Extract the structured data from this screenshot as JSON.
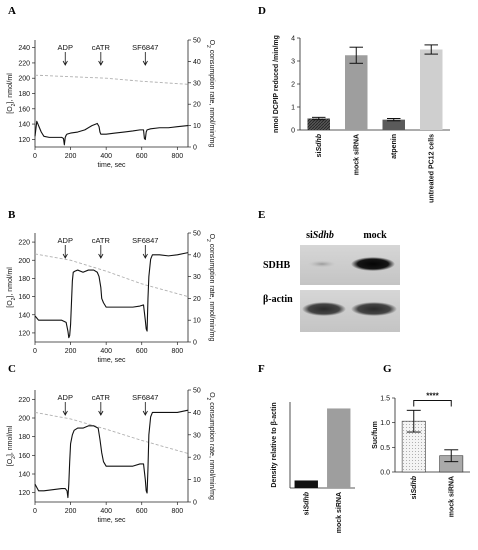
{
  "panels": {
    "A": "A",
    "B": "B",
    "C": "C",
    "D": "D",
    "E": "E",
    "F": "F",
    "G": "G"
  },
  "chart_data": [
    {
      "id": "A",
      "type": "line",
      "xlabel": "time, sec",
      "ylabel": "[O2], nmol/ml",
      "y2label": "O2 consumption rate, nmol/min/mg",
      "xlim": [
        0,
        860
      ],
      "ylim": [
        110,
        250
      ],
      "y2lim": [
        0,
        50
      ],
      "xticks": [
        0,
        200,
        400,
        600,
        800
      ],
      "yticks": [
        120,
        140,
        160,
        180,
        200,
        220,
        240
      ],
      "y2ticks": [
        0,
        10,
        20,
        30,
        40,
        50
      ],
      "annotations": [
        {
          "label": "ADP",
          "x": 170
        },
        {
          "label": "cATR",
          "x": 370
        },
        {
          "label": "SF6847",
          "x": 620
        }
      ],
      "series": [
        {
          "role": "oxygen",
          "axis": "left",
          "style": "dashed",
          "x": [
            0,
            200,
            400,
            600,
            860
          ],
          "y": [
            204,
            202,
            200,
            196,
            192
          ]
        },
        {
          "role": "rate",
          "axis": "right",
          "style": "solid",
          "x": [
            0,
            10,
            20,
            35,
            50,
            80,
            120,
            150,
            160,
            165,
            170,
            175,
            180,
            200,
            240,
            280,
            320,
            350,
            360,
            365,
            370,
            380,
            400,
            450,
            500,
            550,
            590,
            610,
            615,
            620,
            625,
            630,
            650,
            700,
            750,
            800,
            860
          ],
          "y": [
            5,
            12,
            10,
            7,
            5,
            4.5,
            4.5,
            4.5,
            4,
            1,
            4.5,
            5.5,
            6,
            6.5,
            7,
            8,
            10,
            11,
            9.5,
            7,
            6,
            6,
            6,
            6.5,
            7,
            7.5,
            8,
            8,
            4,
            3.5,
            7,
            8,
            8.5,
            9,
            9,
            9.5,
            10
          ]
        }
      ]
    },
    {
      "id": "B",
      "type": "line",
      "xlabel": "time, sec",
      "ylabel": "[O2], nmol/ml",
      "y2label": "O2 consumption rate, nmol/min/mg",
      "xlim": [
        0,
        860
      ],
      "ylim": [
        110,
        230
      ],
      "y2lim": [
        0,
        50
      ],
      "xticks": [
        0,
        200,
        400,
        600,
        800
      ],
      "yticks": [
        120,
        140,
        160,
        180,
        200,
        220
      ],
      "y2ticks": [
        0,
        10,
        20,
        30,
        40,
        50
      ],
      "annotations": [
        {
          "label": "ADP",
          "x": 170
        },
        {
          "label": "cATR",
          "x": 370
        },
        {
          "label": "SF6847",
          "x": 620
        }
      ],
      "series": [
        {
          "role": "oxygen",
          "axis": "left",
          "style": "dashed",
          "x": [
            0,
            200,
            400,
            600,
            860
          ],
          "y": [
            207,
            200,
            188,
            174,
            160
          ]
        },
        {
          "role": "rate",
          "axis": "right",
          "style": "solid",
          "x": [
            0,
            20,
            50,
            100,
            150,
            175,
            185,
            190,
            195,
            200,
            205,
            210,
            215,
            225,
            240,
            270,
            300,
            330,
            350,
            360,
            370,
            375,
            385,
            400,
            450,
            500,
            550,
            590,
            610,
            620,
            625,
            630,
            635,
            640,
            650,
            660,
            680,
            700,
            750,
            800,
            860
          ],
          "y": [
            12,
            10,
            10,
            10,
            10,
            9,
            5,
            2,
            3,
            8,
            18,
            28,
            32,
            32.5,
            33,
            32,
            33,
            33,
            32,
            30,
            25,
            20,
            18,
            16,
            16,
            16,
            16,
            16.5,
            17,
            10,
            6,
            5,
            20,
            30,
            38,
            40,
            40,
            40,
            39.5,
            40,
            41
          ]
        }
      ]
    },
    {
      "id": "C",
      "type": "line",
      "xlabel": "time, sec",
      "ylabel": "[O2], nmol/ml",
      "y2label": "O2 consumption rate, nmol/min/mg",
      "xlim": [
        0,
        860
      ],
      "ylim": [
        110,
        230
      ],
      "y2lim": [
        0,
        50
      ],
      "xticks": [
        0,
        200,
        400,
        600,
        800
      ],
      "yticks": [
        120,
        140,
        160,
        180,
        200,
        220
      ],
      "y2ticks": [
        0,
        10,
        20,
        30,
        40,
        50
      ],
      "annotations": [
        {
          "label": "ADP",
          "x": 170
        },
        {
          "label": "cATR",
          "x": 370
        },
        {
          "label": "SF6847",
          "x": 620
        }
      ],
      "series": [
        {
          "role": "oxygen",
          "axis": "left",
          "style": "dashed",
          "x": [
            0,
            200,
            400,
            600,
            860
          ],
          "y": [
            206,
            199,
            188,
            176,
            162
          ]
        },
        {
          "role": "rate",
          "axis": "right",
          "style": "solid",
          "x": [
            0,
            20,
            50,
            100,
            150,
            170,
            180,
            185,
            190,
            195,
            200,
            210,
            220,
            240,
            270,
            300,
            330,
            355,
            365,
            375,
            385,
            400,
            450,
            500,
            550,
            590,
            610,
            620,
            625,
            630,
            635,
            640,
            650,
            660,
            680,
            700,
            750,
            800,
            860
          ],
          "y": [
            8,
            5,
            5,
            5.5,
            6,
            6,
            5,
            2,
            8,
            18,
            26,
            30,
            32,
            33,
            33,
            34,
            34,
            33,
            28,
            22,
            18,
            16,
            16,
            16,
            16,
            17,
            17,
            10,
            5,
            4,
            15,
            30,
            38,
            40,
            40,
            40,
            40,
            40,
            41
          ]
        }
      ]
    },
    {
      "id": "D",
      "type": "bar",
      "ylabel": "nmol DCPIP reduced /min/mg",
      "ylim": [
        0,
        4
      ],
      "yticks": [
        0,
        1,
        2,
        3,
        4
      ],
      "categories": [
        "siSdhb",
        "mock siRNA",
        "atpenin",
        "untreated PC12 cells"
      ],
      "values": [
        0.5,
        3.25,
        0.45,
        3.5
      ],
      "errors": [
        0.05,
        0.35,
        0.05,
        0.2
      ],
      "colors": [
        "#444444",
        "#9e9e9e",
        "#5a5a5a",
        "#cfcfcf"
      ]
    },
    {
      "id": "F",
      "type": "bar",
      "ylabel": "Density relative to β-actin",
      "ylim": [
        0,
        80
      ],
      "categories": [
        "siSdhb",
        "mock siRNA"
      ],
      "values": [
        7,
        74
      ],
      "colors": [
        "#111111",
        "#9e9e9e"
      ]
    },
    {
      "id": "G",
      "type": "bar",
      "ylabel": "Suc/fum",
      "ylim": [
        0,
        1.5
      ],
      "yticks": [
        0.0,
        0.5,
        1.0,
        1.5
      ],
      "ytick_labels": [
        "0.0",
        "0.5",
        "1.0",
        "1.5"
      ],
      "categories": [
        "siSdhb",
        "mock siRNA"
      ],
      "values": [
        1.03,
        0.33
      ],
      "errors": [
        0.22,
        0.12
      ],
      "colors": [
        "#f2f2f2",
        "#aaaaaa"
      ],
      "significance": "****"
    }
  ],
  "blot": {
    "col1": "siSdhb",
    "col2": "mock",
    "row1": "SDHB",
    "row2": "β-actin"
  },
  "colors": {
    "axis": "#222222",
    "rate_line": "#111111",
    "oxygen_line": "#b0b0b0"
  }
}
